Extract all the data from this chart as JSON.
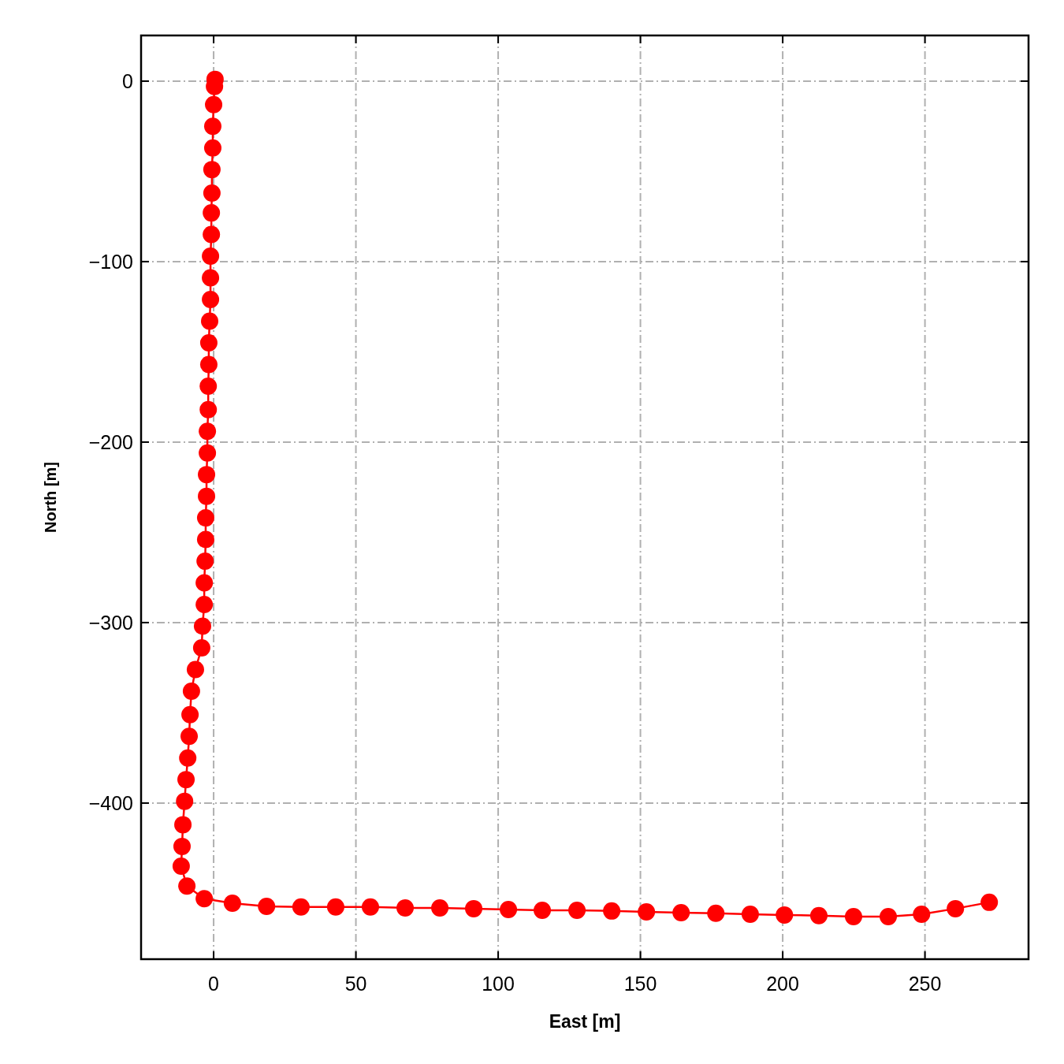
{
  "chart_data": {
    "type": "line",
    "xlabel": "East [m]",
    "ylabel": "North [m]",
    "xlim": [
      -25.5,
      286.4
    ],
    "ylim": [
      -486.5,
      25.3
    ],
    "xticks": [
      0,
      50,
      100,
      150,
      200,
      250
    ],
    "yticks": [
      0,
      {
        "value": -100,
        "label": "−100"
      },
      {
        "value": -200,
        "label": "−200"
      },
      {
        "value": -300,
        "label": "−300"
      },
      {
        "value": -400,
        "label": "−400"
      }
    ],
    "grid": true,
    "marker": "circle",
    "line_style": "solid",
    "series": [
      {
        "color": "#ff0000",
        "x": [
          0.5,
          0.3,
          0,
          -0.3,
          -0.3,
          -0.6,
          -0.6,
          -0.8,
          -0.8,
          -1.1,
          -1.1,
          -1.1,
          -1.4,
          -1.7,
          -1.7,
          -1.9,
          -1.9,
          -2.2,
          -2.2,
          -2.5,
          -2.5,
          -2.8,
          -2.8,
          -3,
          -3.3,
          -3.3,
          -3.9,
          -4.2,
          -6.4,
          -7.8,
          -8.3,
          -8.6,
          -9.1,
          -9.7,
          -10.2,
          -10.8,
          -11.1,
          -11.4,
          -9.4,
          -3.3,
          6.6,
          18.6,
          30.7,
          42.9,
          55.1,
          67.3,
          79.5,
          91.4,
          103.6,
          115.5,
          127.7,
          139.9,
          152.1,
          164.3,
          176.5,
          188.6,
          200.6,
          212.7,
          224.9,
          237.1,
          248.8,
          260.7,
          272.6
        ],
        "values": [
          1,
          -3,
          -13,
          -25,
          -37,
          -49,
          -62,
          -73,
          -85,
          -97,
          -109,
          -121,
          -133,
          -145,
          -157,
          -169,
          -182,
          -194,
          -206,
          -218,
          -230,
          -242,
          -254,
          -266,
          -278,
          -290,
          -302,
          -314,
          -326,
          -338,
          -351,
          -363,
          -375,
          -387,
          -399,
          -412,
          -424,
          -435,
          -446,
          -453,
          -455.5,
          -457.2,
          -457.6,
          -457.6,
          -457.6,
          -458.1,
          -458.1,
          -458.5,
          -459,
          -459.4,
          -459.4,
          -459.8,
          -460.3,
          -460.7,
          -461.1,
          -461.6,
          -462,
          -462.4,
          -462.9,
          -462.9,
          -461.6,
          -458.5,
          -455
        ]
      }
    ]
  }
}
